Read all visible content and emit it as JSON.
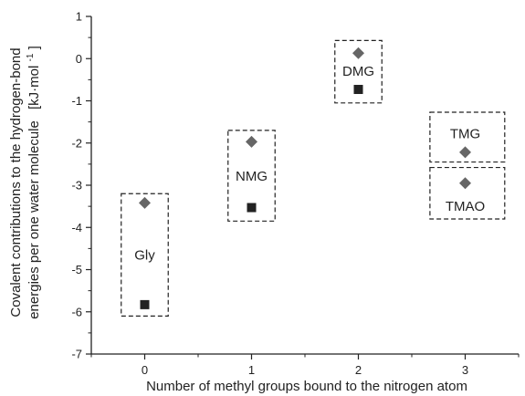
{
  "chart_data": {
    "type": "scatter",
    "xlabel": "Number of methyl groups bound to the nitrogen atom",
    "ylabel_line1": "Covalent contributions to the hydrogen-bond",
    "ylabel_line2": "energies per one water molecule",
    "ylabel_unit_main": "[kJ·mol",
    "ylabel_unit_sup": "-1",
    "ylabel_unit_end": "]",
    "xlim": [
      -0.5,
      3.5
    ],
    "ylim": [
      -7,
      1
    ],
    "x_ticks": [
      0,
      1,
      2,
      3
    ],
    "x_tick_labels": [
      "0",
      "1",
      "2",
      "3"
    ],
    "y_ticks": [
      1,
      0,
      -1,
      -2,
      -3,
      -4,
      -5,
      -6,
      -7
    ],
    "y_tick_labels": [
      "1",
      "0",
      "-1",
      "-2",
      "-3",
      "-4",
      "-5",
      "-6",
      "-7"
    ],
    "grid": false,
    "series": [
      {
        "marker": "diamond",
        "color": "#666666",
        "points": [
          {
            "x": 0,
            "y": -3.42
          },
          {
            "x": 1,
            "y": -1.97
          },
          {
            "x": 2,
            "y": 0.13
          },
          {
            "x": 3,
            "y": -2.22
          },
          {
            "x": 3,
            "y": -2.95
          }
        ]
      },
      {
        "marker": "square",
        "color": "#222222",
        "points": [
          {
            "x": 0,
            "y": -5.83
          },
          {
            "x": 1,
            "y": -3.53
          },
          {
            "x": 2,
            "y": -0.73
          }
        ]
      }
    ],
    "groups": [
      {
        "label": "Gly",
        "x": [
          -0.22,
          0.22
        ],
        "y": [
          -6.1,
          -3.2
        ],
        "label_x": 0,
        "label_y": -4.65
      },
      {
        "label": "NMG",
        "x": [
          -0.22,
          0.22
        ],
        "y": [
          -3.85,
          -1.7
        ],
        "label_x": 1,
        "label_y": -2.78
      },
      {
        "label": "DMG",
        "x": [
          1.78,
          2.22
        ],
        "y": [
          -1.05,
          0.43
        ],
        "label_x": 2,
        "label_y": -0.3
      },
      {
        "label": "TMG",
        "x": [
          2.67,
          3.37
        ],
        "y": [
          -2.45,
          -1.27
        ],
        "label_x": 3,
        "label_y": -1.78
      },
      {
        "label": "TMAO",
        "x": [
          2.67,
          3.37
        ],
        "y": [
          -3.8,
          -2.58
        ],
        "label_x": 3,
        "label_y": -3.5
      }
    ]
  }
}
